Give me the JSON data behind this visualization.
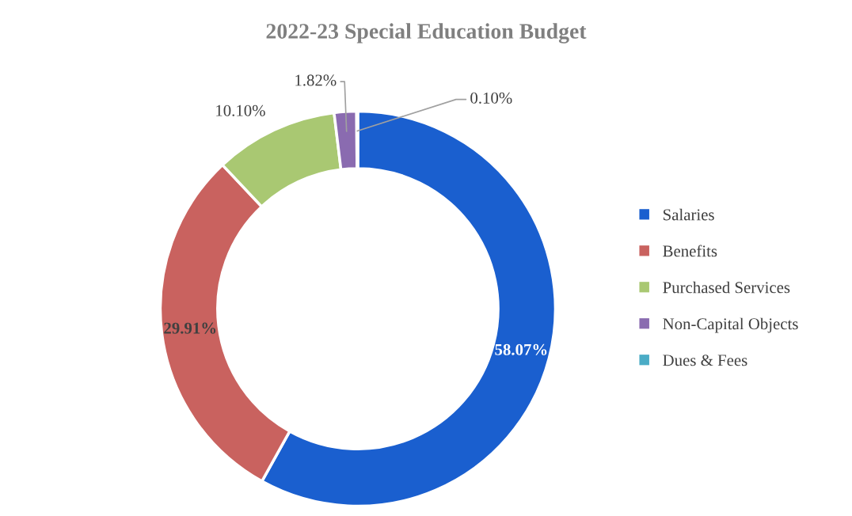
{
  "chart_data": {
    "type": "donut",
    "title": "2022-23 Special Education Budget",
    "categories": [
      "Salaries",
      "Benefits",
      "Purchased Services",
      "Non-Capital Objects",
      "Dues & Fees"
    ],
    "values": [
      58.07,
      29.91,
      10.1,
      1.82,
      0.1
    ],
    "colors": [
      "#1a5fcf",
      "#c9625f",
      "#a9c872",
      "#8a6bb0",
      "#4bacc6"
    ],
    "value_labels": [
      "58.07%",
      "29.91%",
      "10.10%",
      "1.82%",
      "0.10%"
    ],
    "legend": "right"
  }
}
